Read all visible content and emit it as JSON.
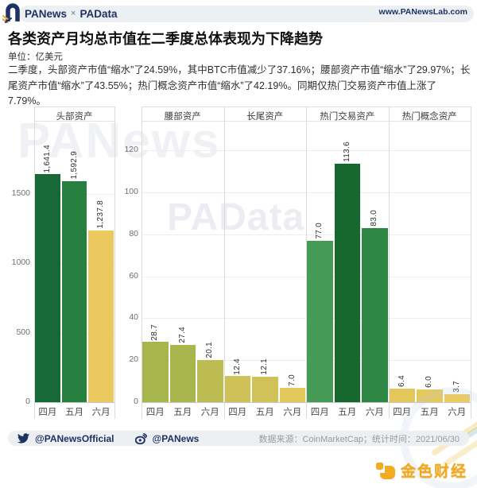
{
  "header": {
    "brand": {
      "part1": "PANews",
      "separator": "×",
      "part2": "PAData"
    },
    "website": "www.PANewsLab.com"
  },
  "title": "各类资产月均总市值在二季度总体表现为下降趋势",
  "unit_label": "单位：亿美元",
  "summary": "二季度，头部资产市值“缩水”了24.59%，其中BTC市值减少了37.16%；腰部资产市值“缩水”了29.97%；长尾资产市值“缩水”了43.55%；热门概念资产市值“缩水”了42.19%。同期仅热门交易资产市值上涨了7.79%。",
  "chart_data": {
    "type": "bar",
    "title": "各类资产月均总市值在二季度总体表现为下降趋势",
    "unit": "亿美元",
    "categories": [
      "四月",
      "五月",
      "六月"
    ],
    "grid": true,
    "value_label_rotation": "vertical",
    "color_encoding": "bar color maps value: yellow = low, dark green = high (normalized per figure)",
    "figures": [
      {
        "axis_ticks": [
          0,
          500,
          1000,
          1500
        ],
        "axis_max": 1700,
        "panels": [
          {
            "name": "头部资产",
            "values": [
              1641.4,
              1592.9,
              1237.8
            ],
            "value_labels": [
              "1,641.4",
              "1,592.9",
              "1,237.8"
            ],
            "bar_colors": [
              "#176a38",
              "#27803f",
              "#ecc95e"
            ]
          }
        ]
      },
      {
        "axis_ticks": [
          0,
          20,
          40,
          60,
          80,
          100,
          120
        ],
        "axis_max": 134,
        "panels": [
          {
            "name": "腰部资产",
            "values": [
              28.7,
              27.4,
              20.1
            ],
            "value_labels": [
              "28.7",
              "27.4",
              "20.1"
            ],
            "bar_colors": [
              "#a7b54d",
              "#a9b64e",
              "#bcbc53"
            ]
          },
          {
            "name": "长尾资产",
            "values": [
              12.4,
              12.1,
              7.0
            ],
            "value_labels": [
              "12.4",
              "12.1",
              "7.0"
            ],
            "bar_colors": [
              "#cfc057",
              "#d0c158",
              "#e3c85c"
            ]
          },
          {
            "name": "热门交易资产",
            "values": [
              77.0,
              113.6,
              83.0
            ],
            "value_labels": [
              "77.0",
              "113.6",
              "83.0"
            ],
            "bar_colors": [
              "#459a55",
              "#16682f",
              "#2f8745"
            ]
          },
          {
            "name": "热门概念资产",
            "values": [
              6.4,
              6.0,
              3.7
            ],
            "value_labels": [
              "6.4",
              "6.0",
              "3.7"
            ],
            "bar_colors": [
              "#e3c75a",
              "#e6c95c",
              "#eccb60"
            ]
          }
        ]
      }
    ]
  },
  "watermarks": {
    "text1": "PANews",
    "text2": "PAData"
  },
  "footer": {
    "twitter_handle": "@PANewsOfficial",
    "weibo_handle": "@PANews",
    "source_note": "数据来源：CoinMarketCap；统计时间：2021/06/30"
  },
  "branding": {
    "jinse_text": "金色财经"
  },
  "theme": {
    "navy": "#1e3263",
    "gold": "#f0a81f",
    "header_bg": "#edf0f3"
  }
}
